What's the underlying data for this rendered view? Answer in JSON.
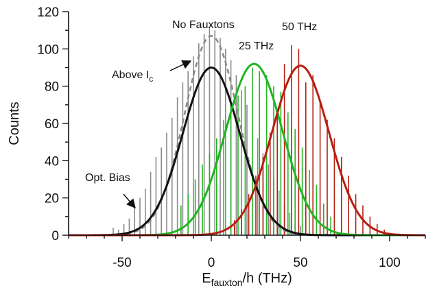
{
  "chart_data": {
    "type": "line",
    "xlabel": {
      "main": "E",
      "sub": "fauxton",
      "rest": "/h (THz)"
    },
    "ylabel": "Counts",
    "xlim": [
      -80,
      120
    ],
    "ylim": [
      0,
      120
    ],
    "x_ticks": [
      -50,
      0,
      50,
      100
    ],
    "y_ticks": [
      0,
      20,
      40,
      60,
      80,
      100,
      120
    ],
    "x_tick_labels": [
      "-50",
      "0",
      "50",
      "100"
    ],
    "y_tick_labels": [
      "0",
      "20",
      "40",
      "60",
      "80",
      "100",
      "120"
    ],
    "grid": false,
    "curves": [
      {
        "name": "Above Ic",
        "kind": "gaussian",
        "color": "#111111",
        "style": "solid",
        "amplitude": 90,
        "center": 0,
        "sigma": 16
      },
      {
        "name": "No Fauxtons",
        "kind": "gaussian",
        "color": "#8a8a8a",
        "style": "dashed",
        "amplitude": 107,
        "center": 0,
        "sigma": 15
      },
      {
        "name": "25 THz",
        "kind": "gaussian",
        "color": "#22b422",
        "style": "solid",
        "amplitude": 92,
        "center": 24,
        "sigma": 16
      },
      {
        "name": "50 THz",
        "kind": "gaussian",
        "color": "#b81e12",
        "style": "solid",
        "amplitude": 91,
        "center": 50,
        "sigma": 16
      }
    ],
    "histograms": [
      {
        "name": "No Fauxtons",
        "color": "#8a8a8a",
        "x": [
          -55,
          -52,
          -49,
          -46,
          -43,
          -40,
          -37,
          -34,
          -31,
          -28,
          -25,
          -22,
          -19,
          -16,
          -13,
          -10,
          -7,
          -4,
          -1,
          2,
          5,
          8,
          11,
          14,
          17,
          20,
          23,
          26,
          29,
          32,
          35,
          38,
          41,
          44,
          47,
          50
        ],
        "y": [
          4,
          3,
          6,
          9,
          15,
          20,
          25,
          34,
          42,
          47,
          55,
          63,
          74,
          82,
          88,
          96,
          103,
          108,
          112,
          110,
          106,
          100,
          94,
          86,
          78,
          70,
          60,
          52,
          44,
          38,
          30,
          24,
          17,
          12,
          8,
          5
        ]
      },
      {
        "name": "25 THz",
        "color": "#22b422",
        "x": [
          -17,
          -13,
          -9,
          -5,
          -1,
          3,
          7,
          11,
          15,
          19,
          23,
          27,
          31,
          35,
          39,
          43,
          47,
          51,
          55,
          59,
          63,
          67
        ],
        "y": [
          16,
          22,
          30,
          38,
          44,
          52,
          62,
          70,
          75,
          80,
          90,
          88,
          86,
          80,
          77,
          66,
          57,
          47,
          35,
          27,
          17,
          10
        ]
      },
      {
        "name": "50 THz",
        "color": "#b81e12",
        "x": [
          13,
          17,
          21,
          25,
          29,
          33,
          37,
          41,
          45,
          49,
          53,
          57,
          61,
          65,
          69,
          73,
          77,
          81,
          85,
          89,
          93,
          97
        ],
        "y": [
          8,
          14,
          22,
          32,
          42,
          55,
          66,
          92,
          102,
          100,
          82,
          86,
          72,
          62,
          52,
          42,
          32,
          22,
          16,
          10,
          6,
          3
        ]
      }
    ],
    "annotations": [
      {
        "id": "no-fauxtons",
        "text": "No Fauxtons"
      },
      {
        "id": "thz-25",
        "text": "25 THz"
      },
      {
        "id": "thz-50",
        "text": "50 THz"
      },
      {
        "id": "above-ic",
        "text": "Above I",
        "sub": "c"
      },
      {
        "id": "opt-bias",
        "text": "Opt. Bias"
      }
    ]
  }
}
